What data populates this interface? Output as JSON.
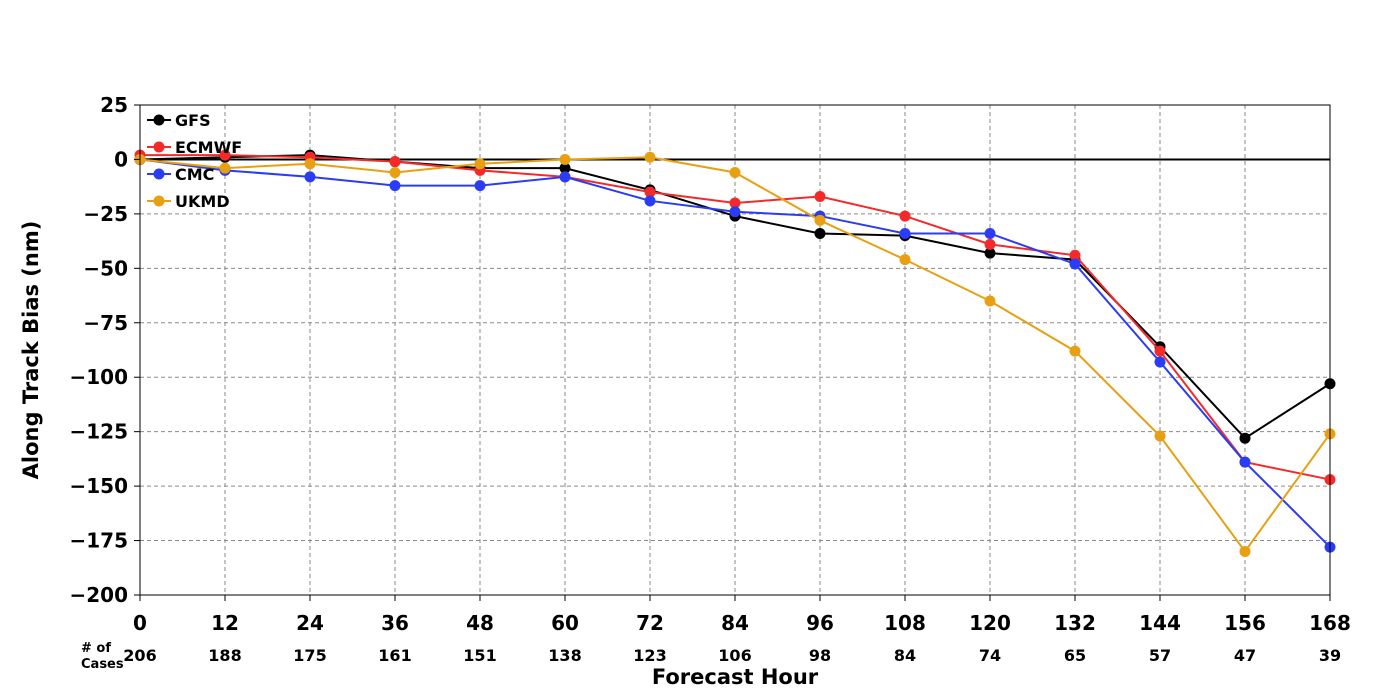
{
  "chart_data": {
    "type": "line",
    "title": "",
    "xlabel": "Forecast Hour",
    "ylabel": "Along Track Bias (nm)",
    "x": [
      0,
      12,
      24,
      36,
      48,
      60,
      72,
      84,
      96,
      108,
      120,
      132,
      144,
      156,
      168
    ],
    "xlim": [
      0,
      168
    ],
    "ylim": [
      -200,
      25
    ],
    "yticks": [
      25,
      0,
      -25,
      -50,
      -75,
      -100,
      -125,
      -150,
      -175,
      -200
    ],
    "ytick_labels": [
      "25",
      "0",
      "−25",
      "−50",
      "−75",
      "−100",
      "−125",
      "−150",
      "−175",
      "−200"
    ],
    "grid": true,
    "legend_position": "top-left",
    "cases_label": [
      "# of",
      "Cases"
    ],
    "cases": [
      206,
      188,
      175,
      161,
      151,
      138,
      123,
      106,
      98,
      84,
      74,
      65,
      57,
      47,
      39
    ],
    "series": [
      {
        "name": "GFS",
        "color": "#000000",
        "values": [
          0,
          1,
          2,
          -1,
          -4,
          -4,
          -14,
          -26,
          -34,
          -35,
          -43,
          -46,
          -86,
          -128,
          -103
        ]
      },
      {
        "name": "ECMWF",
        "color": "#f42a2a",
        "values": [
          2,
          2,
          1,
          -1,
          -5,
          -8,
          -15,
          -20,
          -17,
          -26,
          -39,
          -44,
          -88,
          -139,
          -147
        ]
      },
      {
        "name": "CMC",
        "color": "#2a3cf4",
        "values": [
          0,
          -5,
          -8,
          -12,
          -12,
          -8,
          -19,
          -24,
          -26,
          -34,
          -34,
          -48,
          -93,
          -139,
          -178
        ]
      },
      {
        "name": "UKMD",
        "color": "#e8a012",
        "values": [
          0,
          -4,
          -2,
          -6,
          -2,
          0,
          1,
          -6,
          -28,
          -46,
          -65,
          -88,
          -127,
          -180,
          -126
        ]
      }
    ]
  }
}
